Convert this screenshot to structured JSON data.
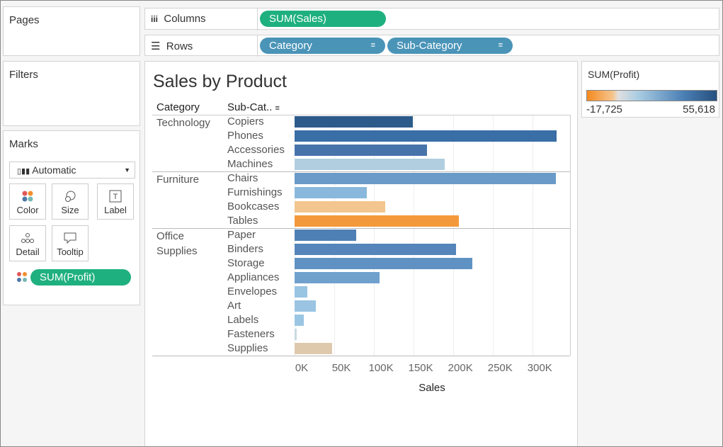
{
  "shelves": {
    "pages": "Pages",
    "columns_label": "Columns",
    "columns_pill": "SUM(Sales)",
    "rows_label": "Rows",
    "rows_pills": [
      "Category",
      "Sub-Category"
    ]
  },
  "filters": "Filters",
  "marks": {
    "title": "Marks",
    "mark_type": "Automatic",
    "buttons": [
      "Color",
      "Size",
      "Label",
      "Detail",
      "Tooltip"
    ],
    "pill": "SUM(Profit)"
  },
  "legend": {
    "title": "SUM(Profit)",
    "min_label": "-17,725",
    "max_label": "55,618"
  },
  "chart_data": {
    "type": "bar",
    "orientation": "horizontal",
    "title": "Sales by Product",
    "category_header": "Category",
    "subcategory_header": "Sub-Cat..",
    "xlabel": "Sales",
    "groups": [
      {
        "name": "Technology",
        "categories": [
          "Copiers",
          "Phones",
          "Accessories",
          "Machines"
        ],
        "values": [
          149000,
          330000,
          167000,
          189000
        ],
        "colors": [
          "#2c5b8b",
          "#3a6ea6",
          "#4674aa",
          "#b0cedf"
        ]
      },
      {
        "name": "Furniture",
        "categories": [
          "Chairs",
          "Furnishings",
          "Bookcases",
          "Tables"
        ],
        "values": [
          329000,
          91000,
          114000,
          207000
        ],
        "colors": [
          "#6a9bc8",
          "#8ab8dc",
          "#f2c68e",
          "#f4993b"
        ]
      },
      {
        "name": "Office Supplies",
        "categories": [
          "Paper",
          "Binders",
          "Storage",
          "Appliances",
          "Envelopes",
          "Art",
          "Labels",
          "Fasteners",
          "Supplies"
        ],
        "values": [
          78000,
          203000,
          224000,
          107000,
          16000,
          27000,
          12000,
          3000,
          47000
        ],
        "colors": [
          "#4f80b5",
          "#5585ba",
          "#5f92c2",
          "#70a1cc",
          "#99c4e2",
          "#9ac4e2",
          "#9ac6e4",
          "#c9d9e3",
          "#dfc9ad"
        ]
      }
    ],
    "xlim": [
      0,
      347000
    ],
    "xticks": [
      {
        "value": 0,
        "label": "0K"
      },
      {
        "value": 50000,
        "label": "50K"
      },
      {
        "value": 100000,
        "label": "100K"
      },
      {
        "value": 150000,
        "label": "150K"
      },
      {
        "value": 200000,
        "label": "200K"
      },
      {
        "value": 250000,
        "label": "250K"
      },
      {
        "value": 300000,
        "label": "300K"
      }
    ],
    "grid": true
  }
}
